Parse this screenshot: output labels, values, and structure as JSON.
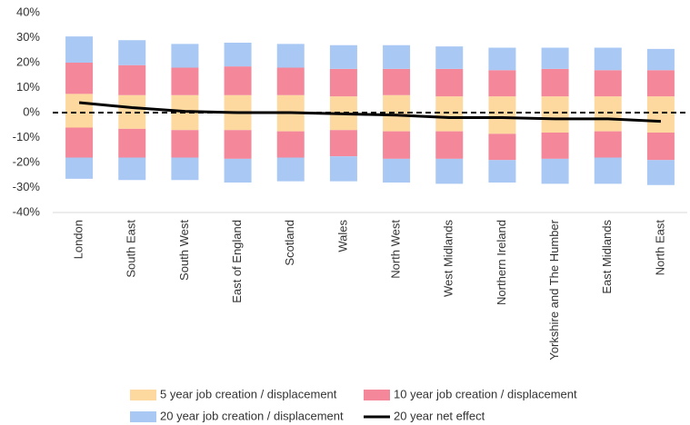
{
  "chart_data": {
    "type": "diverging-stacked-bar",
    "categories": [
      "London",
      "South East",
      "South West",
      "East of England",
      "Scotland",
      "Wales",
      "North West",
      "West Midlands",
      "Northern Ireland",
      "Yorkshire and The Humber",
      "East Midlands",
      "North East"
    ],
    "series": [
      {
        "name": "5 year job creation / displacement",
        "color": "#fdd9a0",
        "values": [
          7.5,
          7,
          7,
          7,
          7,
          6.5,
          7,
          6.5,
          6.5,
          6.5,
          6.5,
          6.5
        ],
        "negative_values": [
          -6,
          -6.5,
          -7,
          -7,
          -7.5,
          -7,
          -7.5,
          -7.5,
          -8.5,
          -8,
          -7.5,
          -8
        ]
      },
      {
        "name": "10 year job creation / displacement",
        "color": "#f4889a",
        "values": [
          12.5,
          12,
          11,
          11.5,
          11,
          11,
          10.5,
          11,
          10.5,
          11,
          10.5,
          10.5
        ],
        "negative_values": [
          -12,
          -11.5,
          -11,
          -11.5,
          -10.5,
          -10.5,
          -11,
          -11,
          -10.5,
          -10.5,
          -10.5,
          -11
        ]
      },
      {
        "name": "20 year job creation / displacement",
        "color": "#a9c8f4",
        "values": [
          10.5,
          10,
          9.5,
          9.5,
          9.5,
          9.5,
          9.5,
          9,
          9,
          8.5,
          9,
          8.5
        ],
        "negative_values": [
          -8.5,
          -9,
          -9,
          -9.5,
          -9.5,
          -10,
          -9.5,
          -10,
          -9,
          -10,
          -10.5,
          -10
        ]
      },
      {
        "name": "20 year net effect",
        "color": "#000000",
        "type": "line",
        "values": [
          4,
          2,
          0.5,
          0,
          0,
          -0.5,
          -1,
          -2,
          -2,
          -2.5,
          -2.5,
          -3.5
        ]
      }
    ],
    "ylim": [
      -40,
      40
    ],
    "yticks": [
      {
        "value": -40,
        "label": "-40%"
      },
      {
        "value": -30,
        "label": "-30%"
      },
      {
        "value": -20,
        "label": "-20%"
      },
      {
        "value": -10,
        "label": "-10%"
      },
      {
        "value": 0,
        "label": "0%"
      },
      {
        "value": 10,
        "label": "10%"
      },
      {
        "value": 20,
        "label": "20%"
      },
      {
        "value": 30,
        "label": "30%"
      },
      {
        "value": 40,
        "label": "40%"
      }
    ],
    "reference_line": 0,
    "grid": false
  }
}
